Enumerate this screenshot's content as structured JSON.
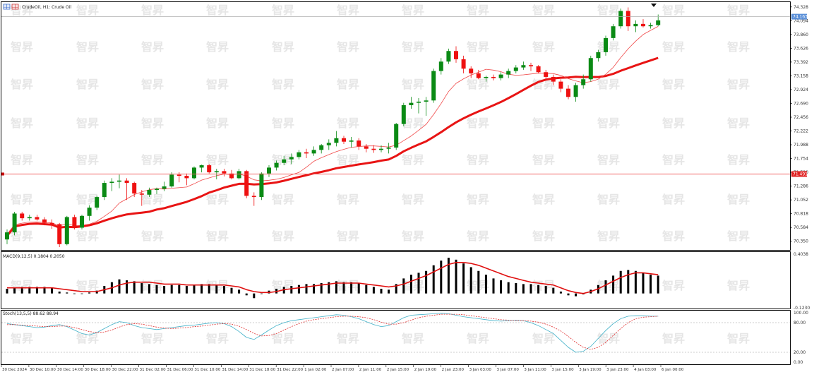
{
  "header": {
    "symbol": "CrudeOil, H1: Crude Oil"
  },
  "watermark": "智昇",
  "icons": [
    "chart-grid-icon",
    "cursor-triangle-icon"
  ],
  "colors": {
    "bull_candle": "#0a8a14",
    "bear_candle": "#ee1111",
    "ma_thin": "#f04848",
    "ma_thick": "#e81414",
    "hline": "#f06060",
    "macd_hist": "#000000",
    "macd_signal": "#e01010",
    "stoch_main": "#40b0c8",
    "stoch_signal": "#e03030",
    "price_tag": "#5a8fd8",
    "level_tag": "#e02020"
  },
  "price_panel": {
    "y_ticks": [
      "74.328",
      "74.094",
      "73.860",
      "73.626",
      "73.392",
      "73.158",
      "72.924",
      "72.690",
      "72.456",
      "72.222",
      "71.988",
      "71.754",
      "71.520",
      "71.286",
      "71.052",
      "70.818",
      "70.584",
      "70.350"
    ],
    "current_price_label": "74.163",
    "hline_label": "71.491"
  },
  "macd_panel": {
    "label": "MACD(9,12,5) 0.1804 0.2050",
    "y_top_label": "0.4038",
    "y_bottom_label": "-0.1230"
  },
  "stoch_panel": {
    "label": "Stoch(13,5,5) 88.62 88.94",
    "y_ticks": [
      "100.00",
      "80.00",
      "20.00",
      "0.00"
    ]
  },
  "x_labels": [
    "30 Dec 2024",
    "30 Dec 10:00",
    "30 Dec 14:00",
    "30 Dec 18:00",
    "30 Dec 22:00",
    "31 Dec 02:00",
    "31 Dec 06:00",
    "31 Dec 10:00",
    "31 Dec 14:00",
    "31 Dec 18:00",
    "31 Dec 22:00",
    "1 Jan 02:00",
    "2 Jan 07:00",
    "2 Jan 11:00",
    "2 Jan 15:00",
    "2 Jan 19:00",
    "2 Jan 23:00",
    "3 Jan 03:00",
    "3 Jan 07:00",
    "3 Jan 11:00",
    "3 Jan 15:00",
    "3 Jan 19:00",
    "3 Jan 23:00",
    "4 Jan 03:00",
    "6 Jan 00:00"
  ],
  "chart_data": {
    "type": "candlestick",
    "symbol": "CrudeOil",
    "timeframe": "H1",
    "ylim": [
      70.25,
      74.35
    ],
    "hline": 71.491,
    "candles": [
      [
        70.38,
        70.55,
        70.3,
        70.5
      ],
      [
        70.5,
        70.85,
        70.45,
        70.82
      ],
      [
        70.82,
        70.85,
        70.7,
        70.74
      ],
      [
        70.74,
        70.8,
        70.7,
        70.76
      ],
      [
        70.76,
        70.8,
        70.7,
        70.72
      ],
      [
        70.72,
        70.76,
        70.62,
        70.66
      ],
      [
        70.66,
        70.72,
        70.56,
        70.64
      ],
      [
        70.64,
        70.66,
        70.25,
        70.3
      ],
      [
        70.3,
        70.78,
        70.28,
        70.76
      ],
      [
        70.76,
        70.8,
        70.55,
        70.58
      ],
      [
        70.58,
        70.8,
        70.55,
        70.78
      ],
      [
        70.78,
        70.96,
        70.7,
        70.92
      ],
      [
        70.92,
        71.12,
        70.88,
        71.1
      ],
      [
        71.1,
        71.38,
        71.05,
        71.34
      ],
      [
        71.34,
        71.42,
        71.2,
        71.36
      ],
      [
        71.36,
        71.48,
        71.25,
        71.38
      ],
      [
        71.38,
        71.42,
        71.05,
        71.34
      ],
      [
        71.34,
        71.36,
        71.1,
        71.16
      ],
      [
        71.16,
        71.22,
        70.95,
        71.14
      ],
      [
        71.14,
        71.26,
        71.1,
        71.22
      ],
      [
        71.22,
        71.26,
        71.15,
        71.24
      ],
      [
        71.24,
        71.36,
        71.2,
        71.28
      ],
      [
        71.28,
        71.52,
        71.26,
        71.48
      ],
      [
        71.48,
        71.52,
        71.35,
        71.46
      ],
      [
        71.46,
        71.5,
        71.3,
        71.42
      ],
      [
        71.42,
        71.62,
        71.4,
        71.6
      ],
      [
        71.6,
        71.65,
        71.52,
        71.64
      ],
      [
        71.64,
        71.66,
        71.5,
        71.52
      ],
      [
        71.52,
        71.58,
        71.4,
        71.54
      ],
      [
        71.54,
        71.58,
        71.45,
        71.5
      ],
      [
        71.5,
        71.56,
        71.4,
        71.42
      ],
      [
        71.42,
        71.58,
        71.4,
        71.54
      ],
      [
        71.54,
        71.56,
        71.08,
        71.12
      ],
      [
        71.12,
        71.18,
        70.95,
        71.1
      ],
      [
        71.1,
        71.52,
        71.05,
        71.5
      ],
      [
        71.5,
        71.64,
        71.44,
        71.6
      ],
      [
        71.6,
        71.72,
        71.55,
        71.68
      ],
      [
        71.68,
        71.8,
        71.64,
        71.74
      ],
      [
        71.74,
        71.84,
        71.66,
        71.78
      ],
      [
        71.78,
        71.9,
        71.74,
        71.86
      ],
      [
        71.86,
        71.92,
        71.76,
        71.84
      ],
      [
        71.84,
        71.96,
        71.8,
        71.9
      ],
      [
        71.9,
        72.0,
        71.84,
        71.98
      ],
      [
        71.98,
        72.08,
        71.9,
        72.02
      ],
      [
        72.02,
        72.22,
        71.96,
        72.1
      ],
      [
        72.1,
        72.14,
        72.0,
        72.04
      ],
      [
        72.04,
        72.12,
        71.94,
        72.06
      ],
      [
        72.06,
        72.1,
        71.9,
        71.96
      ],
      [
        71.96,
        72.0,
        71.86,
        71.92
      ],
      [
        71.92,
        71.98,
        71.85,
        71.9
      ],
      [
        71.9,
        71.98,
        71.86,
        71.92
      ],
      [
        71.92,
        72.02,
        71.84,
        71.94
      ],
      [
        71.94,
        72.36,
        71.9,
        72.34
      ],
      [
        72.34,
        72.7,
        72.3,
        72.66
      ],
      [
        72.66,
        72.8,
        72.6,
        72.7
      ],
      [
        72.7,
        72.78,
        72.52,
        72.72
      ],
      [
        72.72,
        72.8,
        72.48,
        72.74
      ],
      [
        72.74,
        73.28,
        72.7,
        73.24
      ],
      [
        73.24,
        73.46,
        73.18,
        73.4
      ],
      [
        73.4,
        73.62,
        73.36,
        73.58
      ],
      [
        73.58,
        73.66,
        73.38,
        73.44
      ],
      [
        73.44,
        73.5,
        73.2,
        73.28
      ],
      [
        73.28,
        73.32,
        73.12,
        73.2
      ],
      [
        73.2,
        73.26,
        73.1,
        73.12
      ],
      [
        73.12,
        73.16,
        73.06,
        73.14
      ],
      [
        73.14,
        73.18,
        73.08,
        73.12
      ],
      [
        73.12,
        73.22,
        73.08,
        73.18
      ],
      [
        73.18,
        73.28,
        73.12,
        73.24
      ],
      [
        73.24,
        73.34,
        73.2,
        73.3
      ],
      [
        73.3,
        73.4,
        73.26,
        73.34
      ],
      [
        73.34,
        73.38,
        73.24,
        73.32
      ],
      [
        73.32,
        73.34,
        73.2,
        73.22
      ],
      [
        73.22,
        73.26,
        73.1,
        73.14
      ],
      [
        73.14,
        73.18,
        73.0,
        73.06
      ],
      [
        73.06,
        73.1,
        72.88,
        72.94
      ],
      [
        72.94,
        73.0,
        72.76,
        72.8
      ],
      [
        72.8,
        73.04,
        72.72,
        73.0
      ],
      [
        73.0,
        73.18,
        72.94,
        73.1
      ],
      [
        73.1,
        73.5,
        73.06,
        73.46
      ],
      [
        73.46,
        73.6,
        73.4,
        73.56
      ],
      [
        73.56,
        73.84,
        73.5,
        73.8
      ],
      [
        73.8,
        74.04,
        73.76,
        74.0
      ],
      [
        74.0,
        74.3,
        73.96,
        74.26
      ],
      [
        74.26,
        74.32,
        73.92,
        74.0
      ],
      [
        74.0,
        74.1,
        73.9,
        74.04
      ],
      [
        74.04,
        74.12,
        73.98,
        74.0
      ],
      [
        74.0,
        74.06,
        73.96,
        74.02
      ],
      [
        74.02,
        74.2,
        74.0,
        74.1
      ]
    ],
    "macd": {
      "label": "MACD(9,12,5)",
      "main": 0.1804,
      "signal": 0.205,
      "ylim": [
        -0.123,
        0.4038
      ],
      "histogram": [
        0.05,
        0.06,
        0.07,
        0.07,
        0.07,
        0.07,
        0.06,
        0.02,
        0.01,
        0.0,
        0.0,
        0.01,
        0.03,
        0.08,
        0.12,
        0.15,
        0.14,
        0.13,
        0.11,
        0.1,
        0.09,
        0.08,
        0.09,
        0.09,
        0.08,
        0.09,
        0.1,
        0.1,
        0.09,
        0.08,
        0.06,
        0.04,
        -0.02,
        -0.05,
        0.0,
        0.03,
        0.05,
        0.07,
        0.08,
        0.09,
        0.1,
        0.1,
        0.11,
        0.12,
        0.13,
        0.12,
        0.12,
        0.11,
        0.09,
        0.07,
        0.05,
        0.04,
        0.1,
        0.16,
        0.2,
        0.22,
        0.24,
        0.3,
        0.35,
        0.38,
        0.36,
        0.32,
        0.28,
        0.24,
        0.2,
        0.16,
        0.14,
        0.12,
        0.11,
        0.1,
        0.1,
        0.09,
        0.08,
        0.06,
        0.02,
        -0.02,
        -0.03,
        -0.01,
        0.04,
        0.09,
        0.14,
        0.19,
        0.24,
        0.25,
        0.24,
        0.22,
        0.2,
        0.19
      ],
      "signal_line": [
        0.06,
        0.06,
        0.06,
        0.06,
        0.06,
        0.06,
        0.06,
        0.05,
        0.04,
        0.03,
        0.02,
        0.02,
        0.02,
        0.04,
        0.06,
        0.09,
        0.11,
        0.12,
        0.12,
        0.12,
        0.11,
        0.1,
        0.1,
        0.1,
        0.09,
        0.09,
        0.09,
        0.09,
        0.09,
        0.09,
        0.08,
        0.07,
        0.04,
        0.02,
        0.01,
        0.01,
        0.02,
        0.04,
        0.05,
        0.06,
        0.07,
        0.08,
        0.09,
        0.1,
        0.11,
        0.11,
        0.11,
        0.11,
        0.1,
        0.09,
        0.08,
        0.07,
        0.08,
        0.1,
        0.13,
        0.16,
        0.19,
        0.23,
        0.27,
        0.31,
        0.33,
        0.33,
        0.32,
        0.3,
        0.27,
        0.24,
        0.21,
        0.18,
        0.16,
        0.14,
        0.12,
        0.11,
        0.1,
        0.09,
        0.06,
        0.03,
        0.01,
        0.0,
        0.02,
        0.05,
        0.09,
        0.13,
        0.17,
        0.2,
        0.22,
        0.22,
        0.21,
        0.2
      ]
    },
    "stochastic": {
      "label": "Stoch(13,5,5)",
      "main": 88.62,
      "signal": 88.94,
      "ylim": [
        0,
        100
      ],
      "levels": [
        80,
        20
      ],
      "k_line": [
        78,
        76,
        74,
        72,
        70,
        71,
        74,
        76,
        72,
        65,
        58,
        55,
        60,
        68,
        76,
        82,
        80,
        74,
        70,
        68,
        66,
        68,
        70,
        72,
        74,
        75,
        77,
        79,
        80,
        78,
        72,
        62,
        50,
        46,
        55,
        65,
        74,
        80,
        84,
        86,
        88,
        90,
        92,
        94,
        96,
        95,
        92,
        88,
        82,
        76,
        72,
        74,
        82,
        90,
        95,
        96,
        97,
        98,
        99,
        98,
        95,
        92,
        90,
        88,
        86,
        84,
        83,
        84,
        85,
        84,
        80,
        74,
        66,
        58,
        44,
        30,
        20,
        22,
        32,
        48,
        64,
        78,
        88,
        93,
        94,
        94,
        93,
        93
      ],
      "d_line": [
        76,
        76,
        75,
        74,
        73,
        72,
        72,
        73,
        73,
        70,
        66,
        62,
        60,
        61,
        65,
        71,
        76,
        78,
        77,
        74,
        71,
        69,
        68,
        69,
        70,
        72,
        73,
        75,
        77,
        78,
        77,
        73,
        66,
        58,
        53,
        54,
        58,
        65,
        72,
        78,
        83,
        86,
        88,
        90,
        92,
        93,
        93,
        92,
        90,
        86,
        81,
        77,
        77,
        80,
        85,
        90,
        93,
        95,
        97,
        97,
        97,
        96,
        94,
        92,
        90,
        88,
        86,
        85,
        84,
        84,
        83,
        81,
        77,
        71,
        63,
        52,
        40,
        30,
        26,
        30,
        40,
        54,
        68,
        80,
        88,
        91,
        92,
        93
      ]
    }
  }
}
